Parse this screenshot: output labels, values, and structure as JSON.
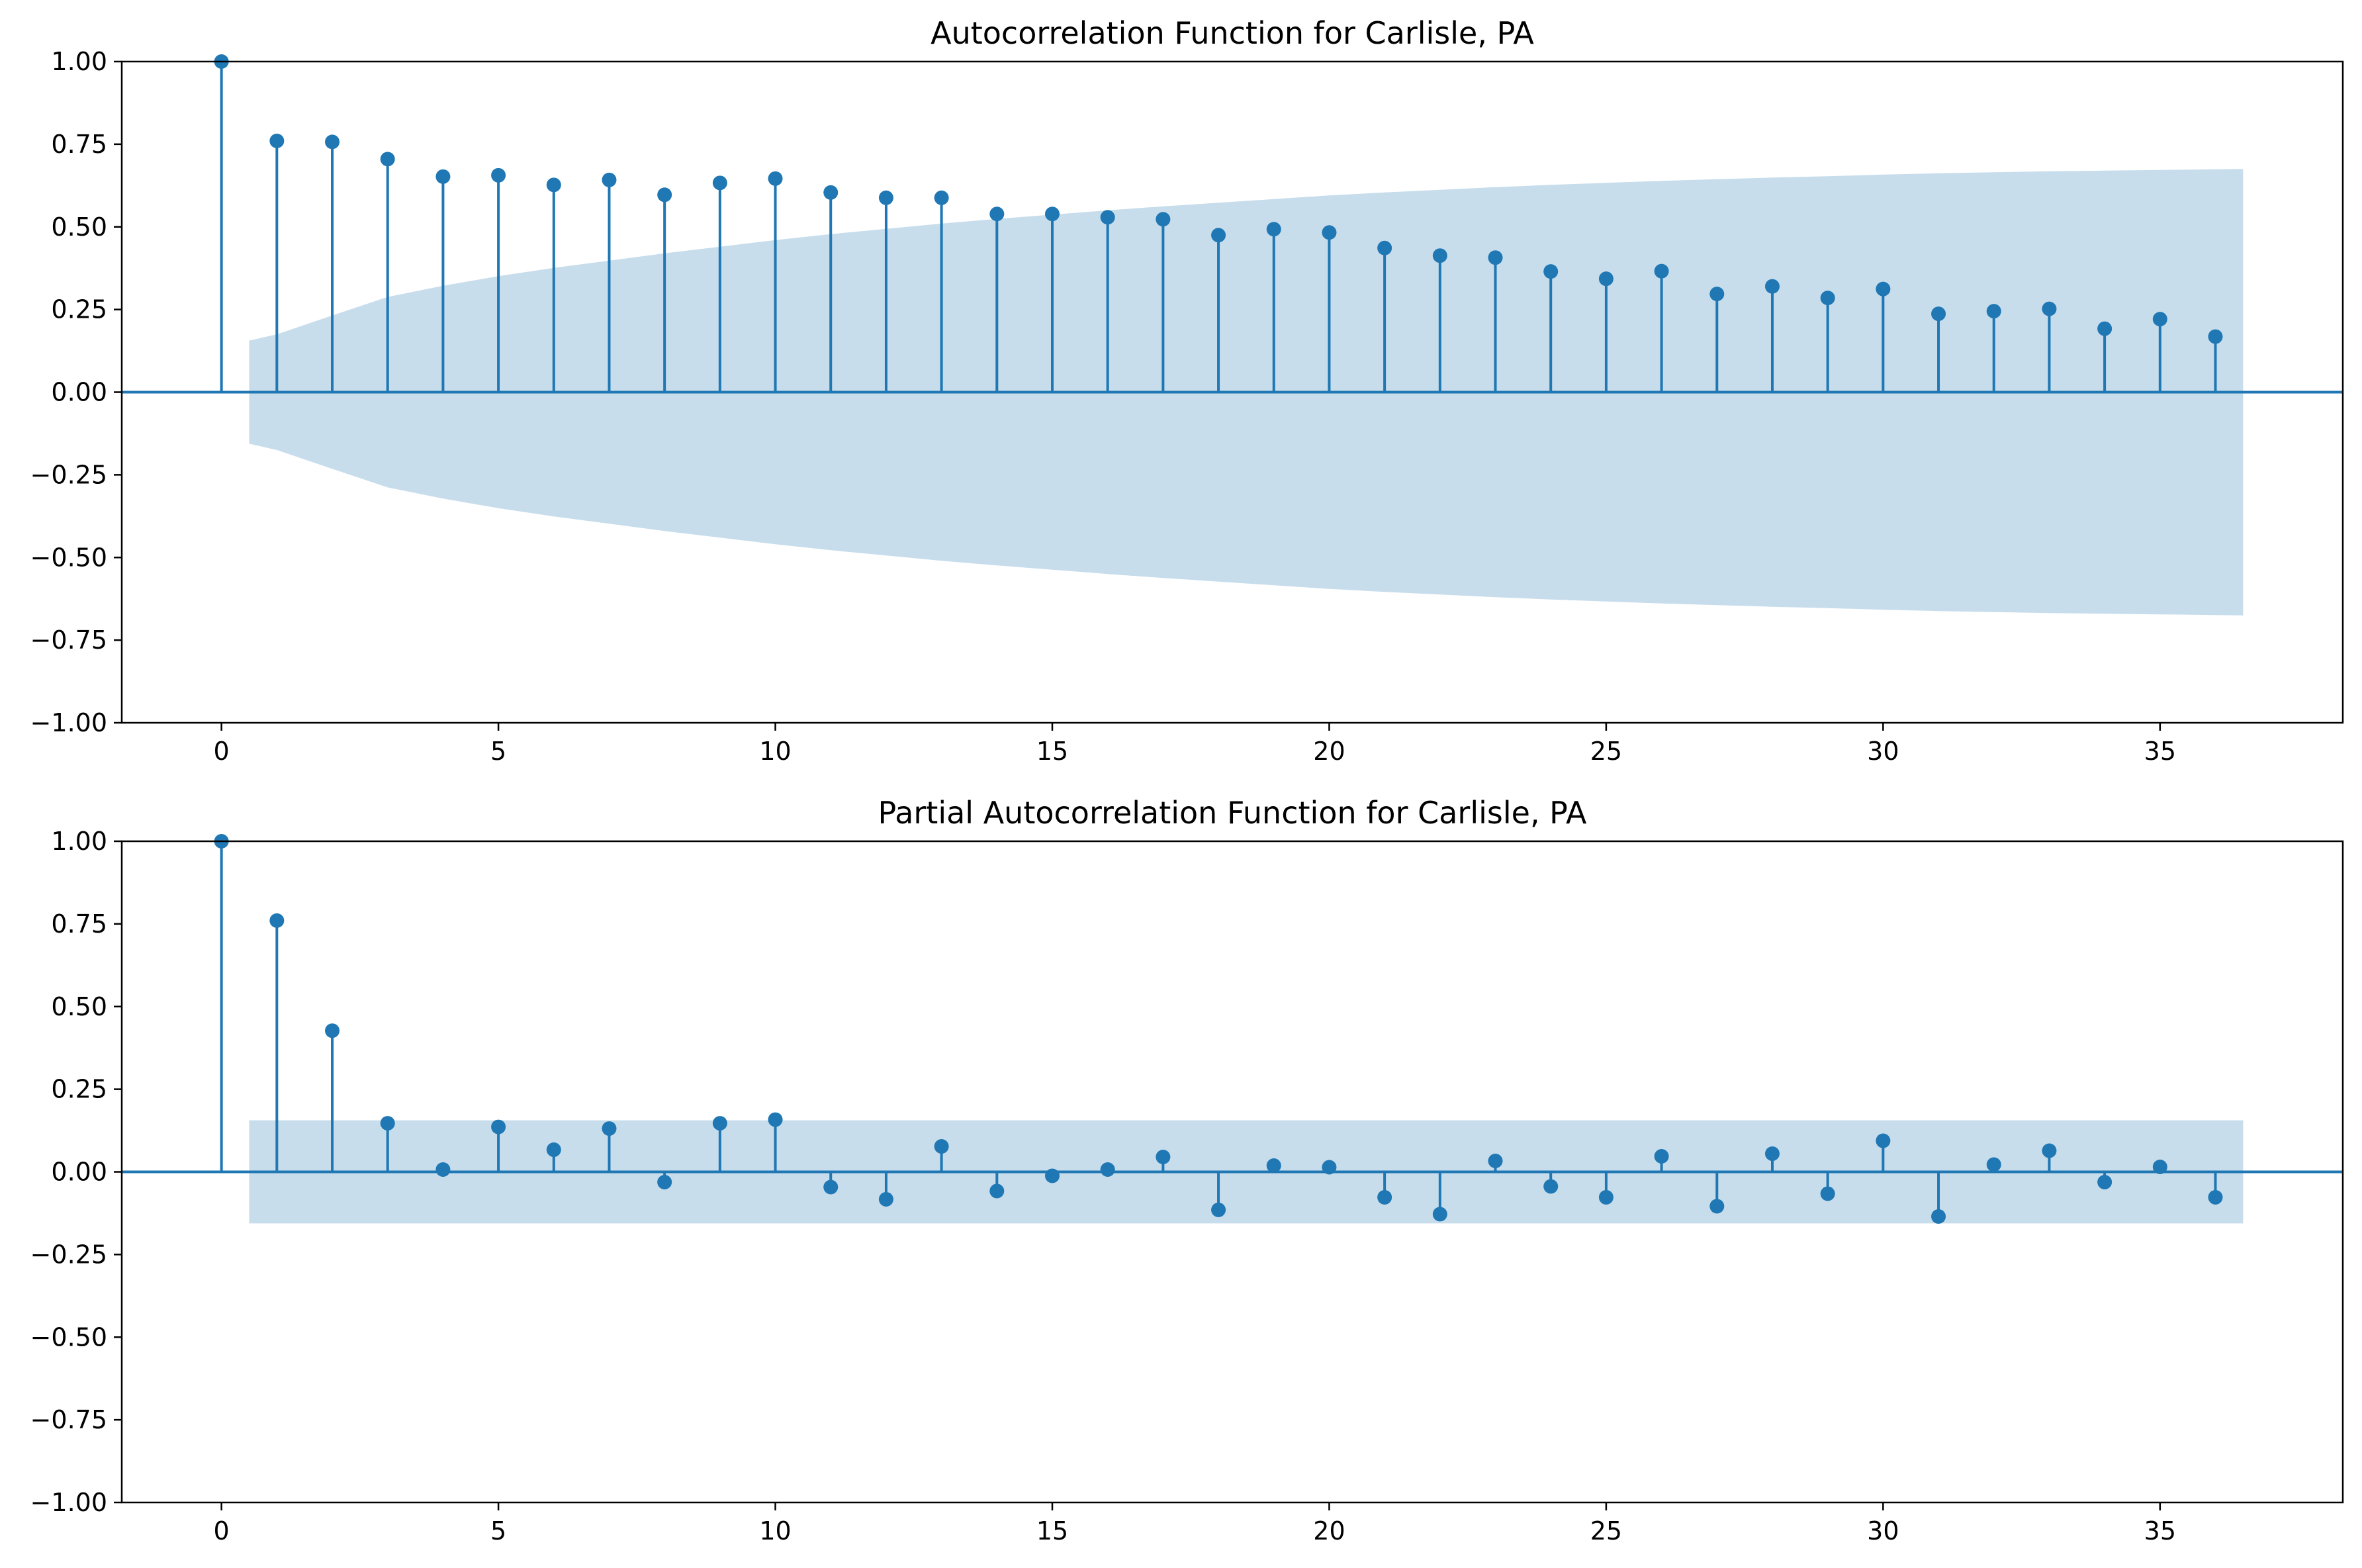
{
  "colors": {
    "marker": "#1f77b4",
    "confidence_band": "#1f77b4",
    "band_opacity": 0.25,
    "axes": "#000000",
    "background": "#ffffff"
  },
  "chart_data": [
    {
      "type": "stem",
      "title": "Autocorrelation Function for Carlisle, PA",
      "xlabel": "",
      "ylabel": "",
      "xlim": [
        -1.8,
        38.3
      ],
      "ylim": [
        -1.0,
        1.0
      ],
      "grid": false,
      "x_ticks": [
        0,
        5,
        10,
        15,
        20,
        25,
        30,
        35
      ],
      "y_ticks": [
        1.0,
        0.75,
        0.5,
        0.25,
        0.0,
        -0.25,
        -0.5,
        -0.75,
        -1.0
      ],
      "x_tick_labels": [
        "0",
        "5",
        "10",
        "15",
        "20",
        "25",
        "30",
        "35"
      ],
      "y_tick_labels": [
        "1.00",
        "0.75",
        "0.50",
        "0.25",
        "0.00",
        "−0.25",
        "−0.50",
        "−0.75",
        "−1.00"
      ],
      "lags": [
        0,
        1,
        2,
        3,
        4,
        5,
        6,
        7,
        8,
        9,
        10,
        11,
        12,
        13,
        14,
        15,
        16,
        17,
        18,
        19,
        20,
        21,
        22,
        23,
        24,
        25,
        26,
        27,
        28,
        29,
        30,
        31,
        32,
        33,
        34,
        35,
        36
      ],
      "values": [
        1.0,
        0.76,
        0.757,
        0.705,
        0.652,
        0.656,
        0.627,
        0.642,
        0.597,
        0.633,
        0.646,
        0.604,
        0.588,
        0.588,
        0.539,
        0.539,
        0.529,
        0.523,
        0.475,
        0.493,
        0.483,
        0.436,
        0.413,
        0.407,
        0.365,
        0.343,
        0.366,
        0.297,
        0.32,
        0.285,
        0.312,
        0.237,
        0.245,
        0.252,
        0.192,
        0.221,
        0.168
      ],
      "confidence_band": {
        "x": [
          0.5,
          1,
          2,
          3,
          4,
          5,
          6,
          7,
          8,
          9,
          10,
          11,
          12,
          13,
          14,
          15,
          16,
          17,
          18,
          19,
          20,
          21,
          22,
          23,
          24,
          25,
          26,
          27,
          28,
          29,
          30,
          31,
          32,
          33,
          34,
          35,
          36,
          36.5
        ],
        "upper": [
          0.156,
          0.175,
          0.232,
          0.288,
          0.322,
          0.351,
          0.376,
          0.398,
          0.42,
          0.44,
          0.46,
          0.478,
          0.494,
          0.51,
          0.524,
          0.537,
          0.55,
          0.562,
          0.573,
          0.584,
          0.595,
          0.604,
          0.612,
          0.62,
          0.627,
          0.633,
          0.639,
          0.644,
          0.649,
          0.653,
          0.658,
          0.662,
          0.665,
          0.668,
          0.67,
          0.672,
          0.674,
          0.675
        ]
      }
    },
    {
      "type": "stem",
      "title": "Partial Autocorrelation Function for Carlisle, PA",
      "xlabel": "",
      "ylabel": "",
      "xlim": [
        -1.8,
        38.3
      ],
      "ylim": [
        -1.0,
        1.0
      ],
      "grid": false,
      "x_ticks": [
        0,
        5,
        10,
        15,
        20,
        25,
        30,
        35
      ],
      "y_ticks": [
        1.0,
        0.75,
        0.5,
        0.25,
        0.0,
        -0.25,
        -0.5,
        -0.75,
        -1.0
      ],
      "x_tick_labels": [
        "0",
        "5",
        "10",
        "15",
        "20",
        "25",
        "30",
        "35"
      ],
      "y_tick_labels": [
        "1.00",
        "0.75",
        "0.50",
        "0.25",
        "0.00",
        "−0.25",
        "−0.50",
        "−0.75",
        "−1.00"
      ],
      "lags": [
        0,
        1,
        2,
        3,
        4,
        5,
        6,
        7,
        8,
        9,
        10,
        11,
        12,
        13,
        14,
        15,
        16,
        17,
        18,
        19,
        20,
        21,
        22,
        23,
        24,
        25,
        26,
        27,
        28,
        29,
        30,
        31,
        32,
        33,
        34,
        35,
        36
      ],
      "values": [
        1.0,
        0.76,
        0.427,
        0.147,
        0.007,
        0.136,
        0.067,
        0.131,
        -0.031,
        0.147,
        0.158,
        -0.046,
        -0.083,
        0.077,
        -0.058,
        -0.012,
        0.007,
        0.045,
        -0.115,
        0.019,
        0.014,
        -0.077,
        -0.128,
        0.033,
        -0.044,
        -0.077,
        0.047,
        -0.104,
        0.055,
        -0.066,
        0.094,
        -0.135,
        0.022,
        0.064,
        -0.031,
        0.015,
        -0.077
      ],
      "confidence_band": {
        "x": [
          0.5,
          36.5
        ],
        "upper": [
          0.156,
          0.156
        ]
      }
    }
  ]
}
